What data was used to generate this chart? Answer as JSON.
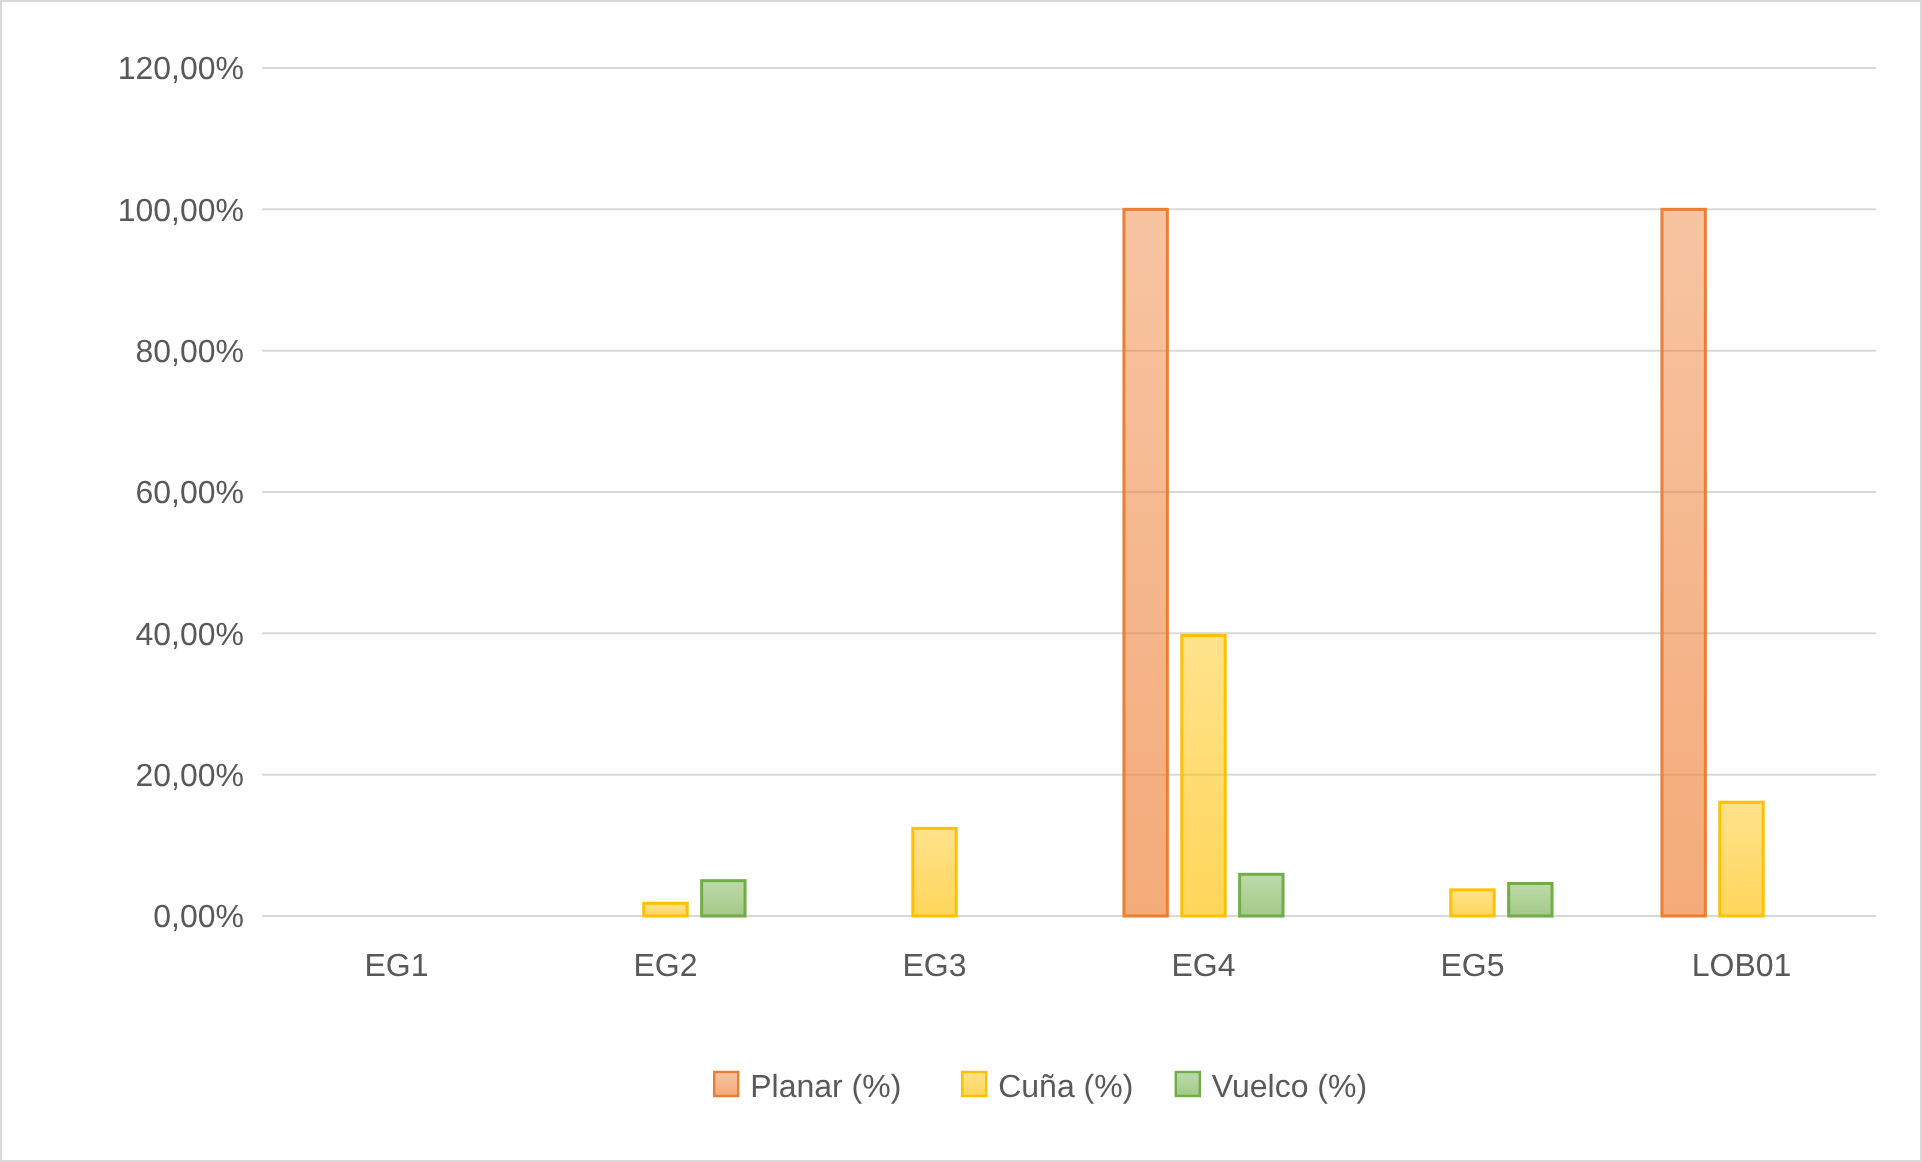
{
  "chart_data": {
    "type": "bar",
    "categories": [
      "EG1",
      "EG2",
      "EG3",
      "EG4",
      "EG5",
      "LOB01"
    ],
    "series": [
      {
        "name": "Planar (%)",
        "color": "#ed7d31",
        "values": [
          0,
          0,
          0,
          100,
          0,
          100
        ]
      },
      {
        "name": "Cuña (%)",
        "color": "#ffc000",
        "values": [
          0,
          1.8,
          12.4,
          39.7,
          3.7,
          16.1
        ]
      },
      {
        "name": "Vuelco (%)",
        "color": "#70ad47",
        "values": [
          0,
          5,
          0,
          5.9,
          4.6,
          0
        ]
      }
    ],
    "ylim": [
      0,
      120
    ],
    "yticks": [
      {
        "value": 0,
        "label": "0,00%"
      },
      {
        "value": 20,
        "label": "20,00%"
      },
      {
        "value": 40,
        "label": "40,00%"
      },
      {
        "value": 60,
        "label": "60,00%"
      },
      {
        "value": 80,
        "label": "80,00%"
      },
      {
        "value": 100,
        "label": "100,00%"
      },
      {
        "value": 120,
        "label": "120,00%"
      }
    ],
    "grid": "y",
    "legend": "bottom"
  }
}
